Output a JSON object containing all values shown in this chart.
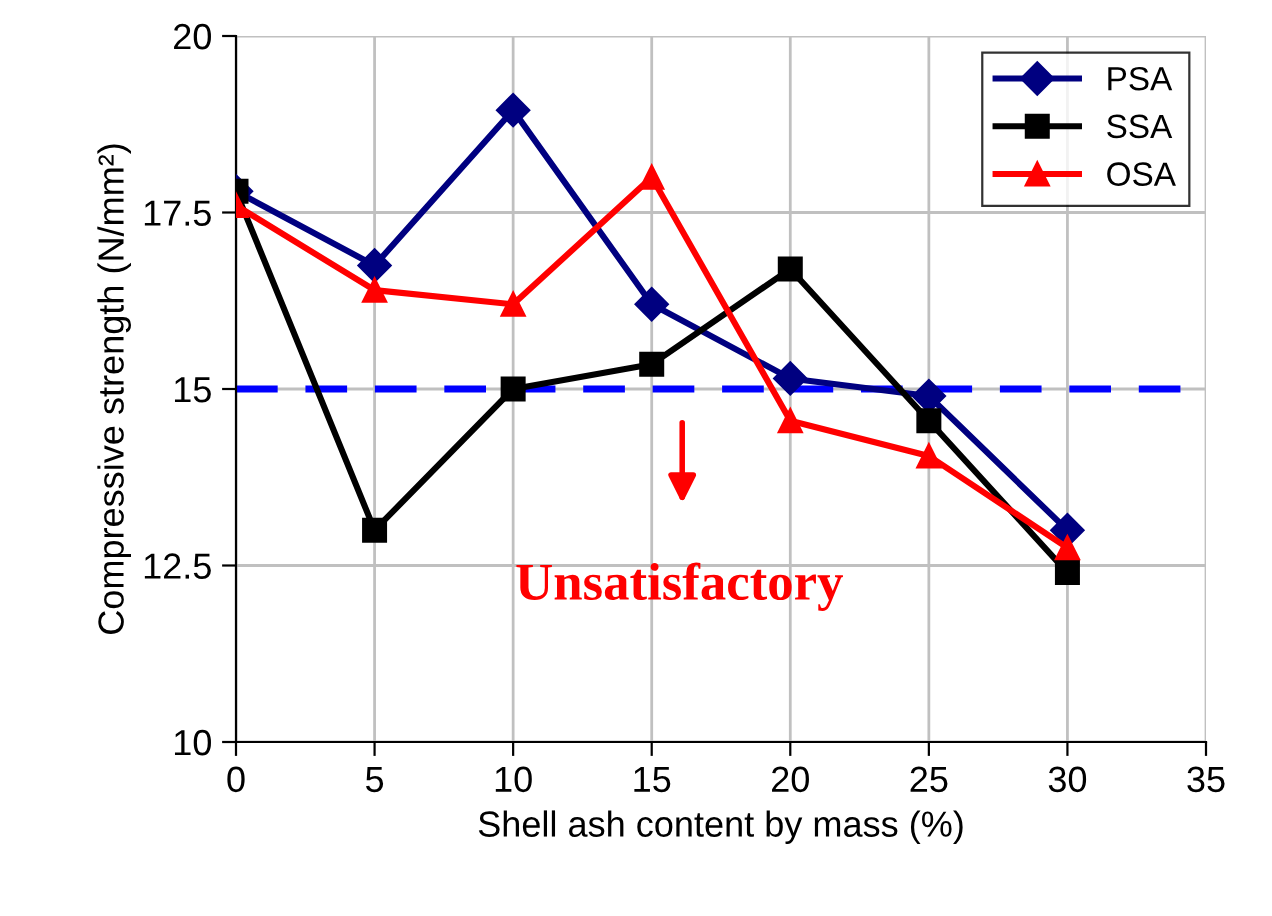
{
  "chart_data": {
    "type": "line",
    "xlabel": "Shell ash content by mass (%)",
    "ylabel": "Compressive strength (N/mm²)",
    "x": [
      0,
      5,
      10,
      15,
      20,
      25,
      30
    ],
    "series": [
      {
        "name": "PSA",
        "color": "#000080",
        "marker": "diamond",
        "values": [
          17.8,
          16.75,
          18.95,
          16.2,
          15.15,
          14.9,
          13.0
        ]
      },
      {
        "name": "SSA",
        "color": "#000000",
        "marker": "square",
        "values": [
          17.8,
          13.0,
          15.0,
          15.35,
          16.7,
          14.55,
          12.4
        ]
      },
      {
        "name": "OSA",
        "color": "#ff0000",
        "marker": "triangle",
        "values": [
          17.6,
          16.4,
          16.2,
          18.0,
          14.55,
          14.05,
          12.75
        ]
      }
    ],
    "xlim": [
      0,
      35
    ],
    "xticks": [
      0,
      5,
      10,
      15,
      20,
      25,
      30,
      35
    ],
    "ylim": [
      10,
      20
    ],
    "yticks": [
      10,
      12.5,
      15,
      17.5,
      20
    ],
    "grid": true,
    "legend": "top right",
    "line_style": "solid",
    "ref_lines": [
      {
        "axis": "y",
        "value": 15,
        "color": "#0000ff",
        "line_style": "dashed"
      }
    ],
    "annotations": [
      "Unsatisfactory"
    ]
  }
}
